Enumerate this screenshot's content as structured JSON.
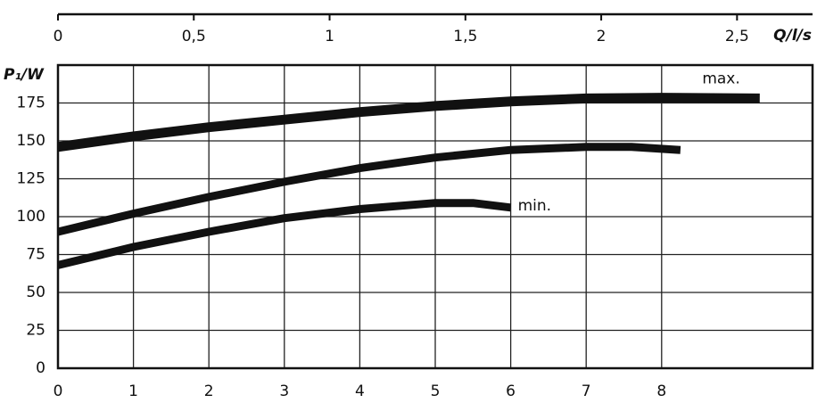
{
  "chart_data": {
    "type": "line",
    "x_label": "Q/l/s",
    "y_label": "P₁/W",
    "xlim": [
      0,
      10
    ],
    "xticks": [
      0,
      1,
      2,
      3,
      4,
      5,
      6,
      7,
      8
    ],
    "x2lim": [
      0,
      2.778
    ],
    "x2ticks": [
      0,
      {
        "value": 0.5,
        "label": "0,5"
      },
      1,
      {
        "value": 1.5,
        "label": "1,5"
      },
      2,
      {
        "value": 2.5,
        "label": "2,5"
      }
    ],
    "ylim": [
      0,
      200
    ],
    "yticks": [
      0,
      25,
      50,
      75,
      100,
      125,
      150,
      175
    ],
    "grid": true,
    "series": [
      {
        "name": "max.",
        "color": "#111111",
        "x": [
          0,
          1,
          2,
          3,
          4,
          5,
          6,
          7,
          8,
          9.3
        ],
        "values": [
          146,
          153,
          159,
          164,
          169,
          173,
          176,
          178,
          178.5,
          178
        ]
      },
      {
        "color": "#111111",
        "x": [
          0,
          1,
          2,
          3,
          4,
          5,
          6,
          7,
          7.6,
          8.25
        ],
        "values": [
          90,
          102,
          113,
          123,
          132,
          139,
          144,
          146,
          146,
          144
        ]
      },
      {
        "name": "min.",
        "color": "#111111",
        "x": [
          0,
          1,
          2,
          3,
          4,
          5,
          5.5,
          6
        ],
        "values": [
          68,
          80,
          90,
          99,
          105,
          109,
          109,
          106
        ]
      }
    ]
  }
}
